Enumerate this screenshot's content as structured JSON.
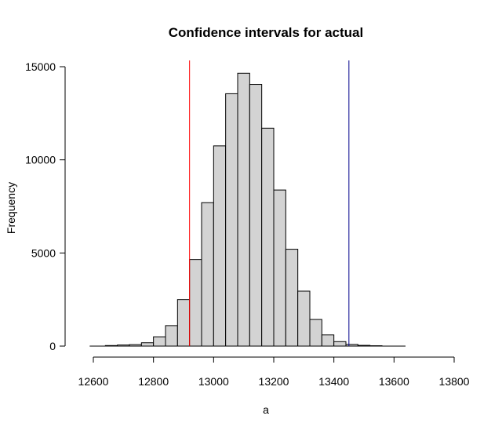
{
  "chart_data": {
    "type": "bar",
    "title": "Confidence intervals for actual",
    "xlabel": "a",
    "ylabel": "Frequency",
    "bin_width": 40,
    "bins": [
      {
        "x0": 12640,
        "count": 30
      },
      {
        "x0": 12680,
        "count": 60
      },
      {
        "x0": 12720,
        "count": 80
      },
      {
        "x0": 12760,
        "count": 180
      },
      {
        "x0": 12800,
        "count": 500
      },
      {
        "x0": 12840,
        "count": 1100
      },
      {
        "x0": 12880,
        "count": 2500
      },
      {
        "x0": 12920,
        "count": 4650
      },
      {
        "x0": 12960,
        "count": 7700
      },
      {
        "x0": 13000,
        "count": 10750
      },
      {
        "x0": 13040,
        "count": 13550
      },
      {
        "x0": 13080,
        "count": 14650
      },
      {
        "x0": 13120,
        "count": 14050
      },
      {
        "x0": 13160,
        "count": 11700
      },
      {
        "x0": 13200,
        "count": 8380
      },
      {
        "x0": 13240,
        "count": 5200
      },
      {
        "x0": 13280,
        "count": 2950
      },
      {
        "x0": 13320,
        "count": 1430
      },
      {
        "x0": 13360,
        "count": 600
      },
      {
        "x0": 13400,
        "count": 240
      },
      {
        "x0": 13440,
        "count": 90
      },
      {
        "x0": 13480,
        "count": 40
      },
      {
        "x0": 13520,
        "count": 20
      }
    ],
    "xlim": [
      12600,
      13800
    ],
    "ylim": [
      0,
      15000
    ],
    "xticks": [
      12600,
      12800,
      13000,
      13200,
      13400,
      13600,
      13800
    ],
    "yticks": [
      0,
      5000,
      10000,
      15000
    ],
    "vlines": [
      {
        "x": 12920,
        "color": "#ff0000"
      },
      {
        "x": 13450,
        "color": "#00008b"
      }
    ],
    "bar_color": "#d3d3d3",
    "grid": false
  }
}
